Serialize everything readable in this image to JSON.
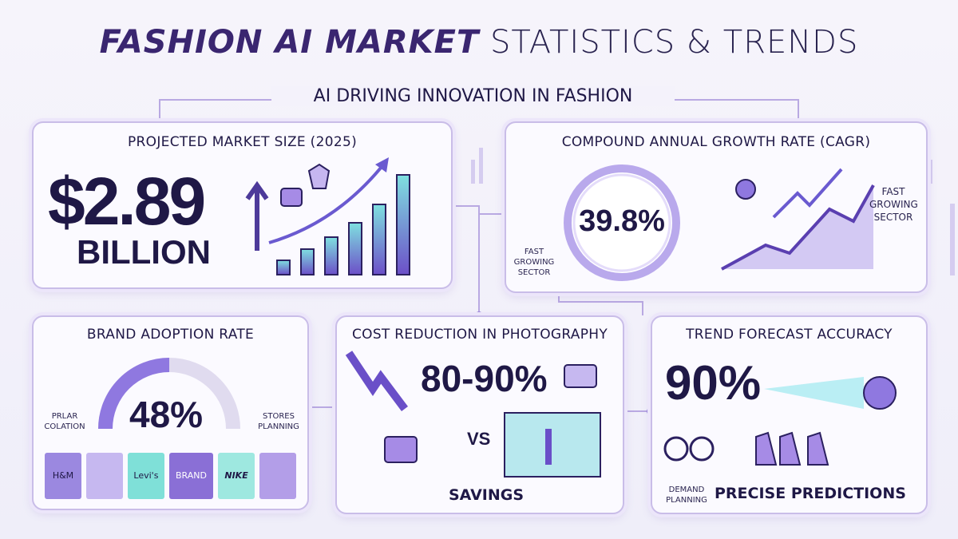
{
  "header": {
    "title_bold": "FASHION AI MARKET",
    "title_light": "STATISTICS & TRENDS",
    "subtitle": "AI DRIVING INNOVATION IN FASHION"
  },
  "cards": {
    "market_size": {
      "title": "PROJECTED MARKET SIZE (2025)",
      "value": "$2.89",
      "unit": "BILLION"
    },
    "cagr": {
      "title": "COMPOUND ANNUAL GROWTH RATE (CAGR)",
      "value": "39.8%",
      "left_note": "FAST GROWING SECTOR",
      "right_note": "FAST GROWING SECTOR"
    },
    "adoption": {
      "title": "BRAND ADOPTION RATE",
      "value": "48%",
      "left_note": "PRLAR COLATION",
      "right_note": "STORES PLANNING",
      "bags": [
        "H&M",
        "Levi's",
        "BRAND",
        "NIKE"
      ]
    },
    "photography": {
      "title": "COST REDUCTION IN PHOTOGRAPHY",
      "value": "80-90%",
      "vs": "VS",
      "savings": "SAVINGS"
    },
    "forecast": {
      "title": "TREND FORECAST ACCURACY",
      "value": "90%",
      "left_note": "DEMAND PLANNING",
      "caption": "PRECISE PREDICTIONS"
    }
  }
}
